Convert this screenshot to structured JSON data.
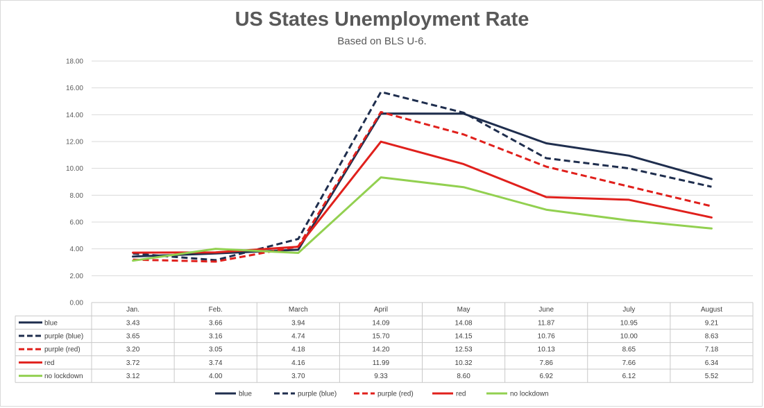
{
  "chart_data": {
    "type": "line",
    "title": "US States Unemployment Rate",
    "subtitle": "Based on BLS U-6.",
    "categories": [
      "Jan.",
      "Feb.",
      "March",
      "April",
      "May",
      "June",
      "July",
      "August"
    ],
    "ylim": [
      0,
      18
    ],
    "yticks": [
      "0.00",
      "2.00",
      "4.00",
      "6.00",
      "8.00",
      "10.00",
      "12.00",
      "14.00",
      "16.00",
      "18.00"
    ],
    "grid": true,
    "legend_position": "bottom",
    "data_table": true,
    "series": [
      {
        "name": "blue",
        "color": "#1f2e4e",
        "dash": false,
        "values": [
          3.43,
          3.66,
          3.94,
          14.09,
          14.08,
          11.87,
          10.95,
          9.21
        ],
        "labels": [
          "3.43",
          "3.66",
          "3.94",
          "14.09",
          "14.08",
          "11.87",
          "10.95",
          "9.21"
        ]
      },
      {
        "name": "purple (blue)",
        "color": "#1f2e4e",
        "dash": true,
        "values": [
          3.65,
          3.16,
          4.74,
          15.7,
          14.15,
          10.76,
          10.0,
          8.63
        ],
        "labels": [
          "3.65",
          "3.16",
          "4.74",
          "15.70",
          "14.15",
          "10.76",
          "10.00",
          "8.63"
        ]
      },
      {
        "name": "purple (red)",
        "color": "#e0201c",
        "dash": true,
        "values": [
          3.2,
          3.05,
          4.18,
          14.2,
          12.53,
          10.13,
          8.65,
          7.18
        ],
        "labels": [
          "3.20",
          "3.05",
          "4.18",
          "14.20",
          "12.53",
          "10.13",
          "8.65",
          "7.18"
        ]
      },
      {
        "name": "red",
        "color": "#e0201c",
        "dash": false,
        "values": [
          3.72,
          3.74,
          4.16,
          11.99,
          10.32,
          7.86,
          7.66,
          6.34
        ],
        "labels": [
          "3.72",
          "3.74",
          "4.16",
          "11.99",
          "10.32",
          "7.86",
          "7.66",
          "6.34"
        ]
      },
      {
        "name": "no lockdown",
        "color": "#92d050",
        "dash": false,
        "values": [
          3.12,
          4.0,
          3.7,
          9.33,
          8.6,
          6.92,
          6.12,
          5.52
        ],
        "labels": [
          "3.12",
          "4.00",
          "3.70",
          "9.33",
          "8.60",
          "6.92",
          "6.12",
          "5.52"
        ]
      }
    ]
  }
}
